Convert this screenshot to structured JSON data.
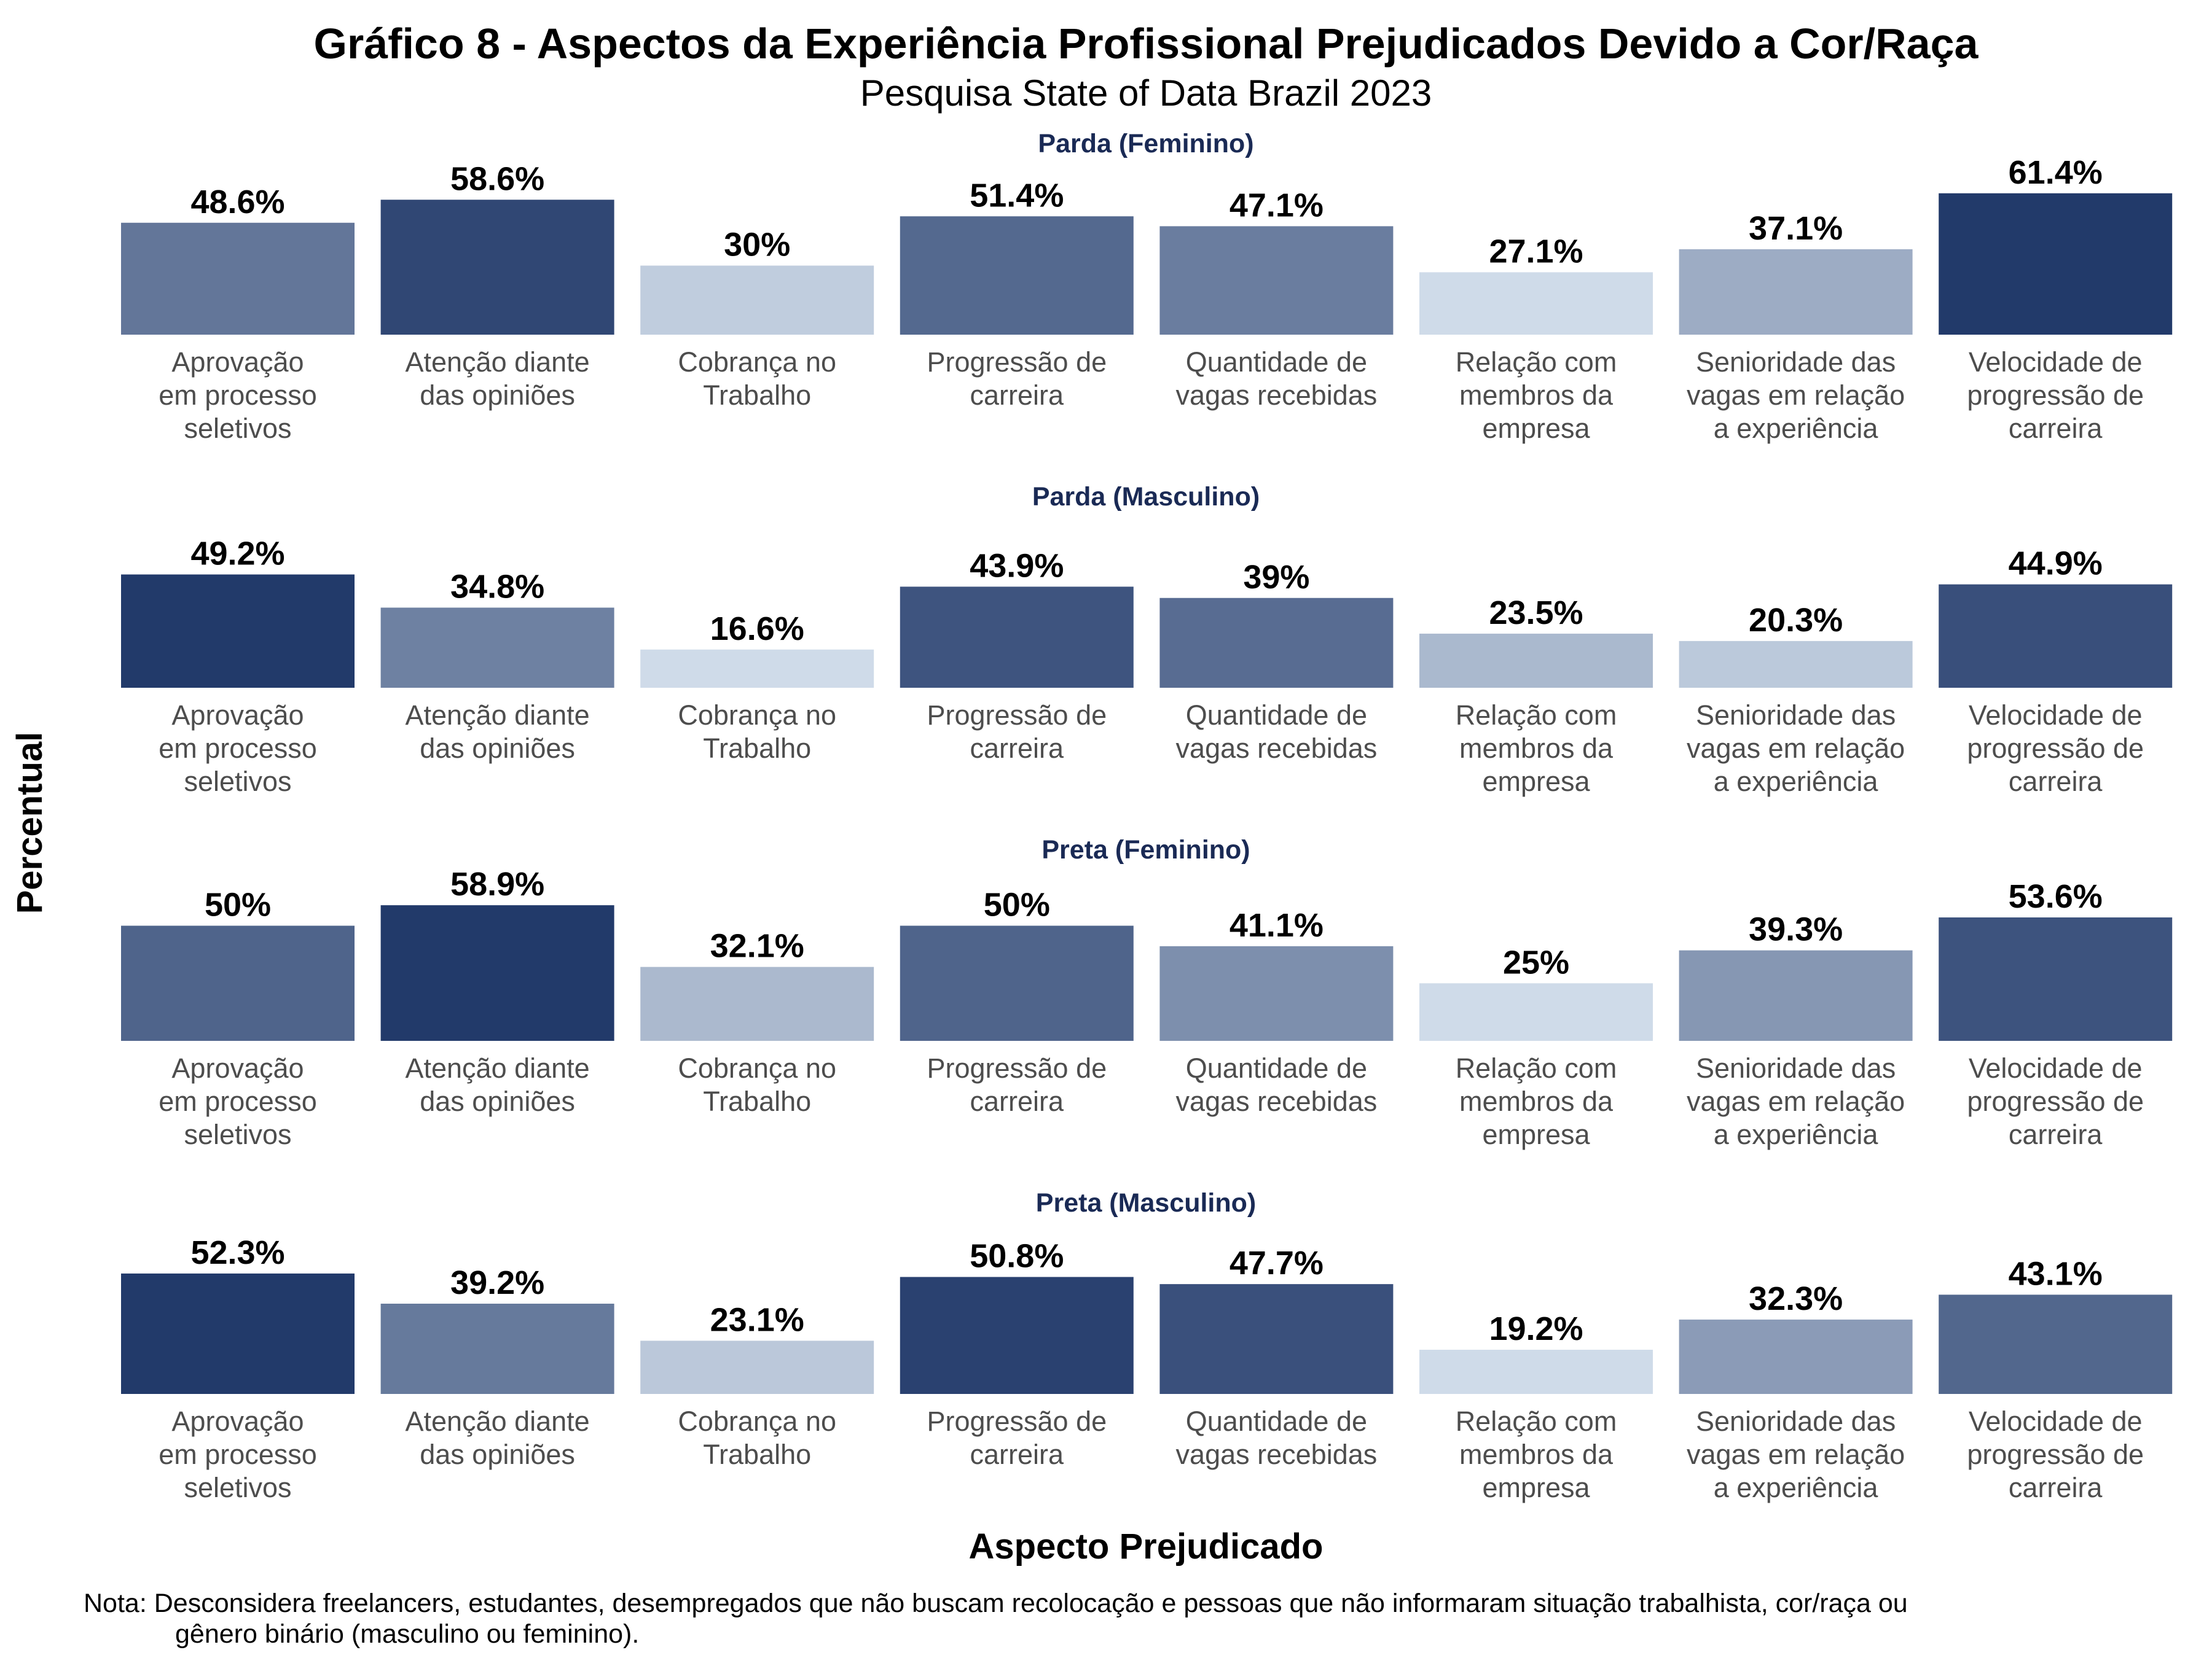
{
  "chart_data": {
    "type": "bar",
    "title": "Gráfico 8 - Aspectos da Experiência Profissional Prejudicados Devido a Cor/Raça",
    "subtitle": "Pesquisa State of Data Brazil 2023",
    "xlabel": "Aspecto Prejudicado",
    "ylabel": "Percentual",
    "ylim": [
      0,
      65
    ],
    "grid": false,
    "legend": "none",
    "categories": [
      "Aprovação\nem processo\nseletivos",
      "Atenção diante\ndas opiniões",
      "Cobrança no\nTrabalho",
      "Progressão de\ncarreira",
      "Quantidade de\nvagas recebidas",
      "Relação com\nmembros da\nempresa",
      "Senioridade das\nvagas em relação\na experiência",
      "Velocidade de\nprogressão de\ncarreira"
    ],
    "facets": [
      {
        "title": "Parda (Feminino)",
        "values": [
          48.6,
          58.6,
          30,
          51.4,
          47.1,
          27.1,
          37.1,
          61.4
        ],
        "labels": [
          "48.6%",
          "58.6%",
          "30%",
          "51.4%",
          "47.1%",
          "27.1%",
          "37.1%",
          "61.4%"
        ]
      },
      {
        "title": "Parda (Masculino)",
        "values": [
          49.2,
          34.8,
          16.6,
          43.9,
          39,
          23.5,
          20.3,
          44.9
        ],
        "labels": [
          "49.2%",
          "34.8%",
          "16.6%",
          "43.9%",
          "39%",
          "23.5%",
          "20.3%",
          "44.9%"
        ]
      },
      {
        "title": "Preta (Feminino)",
        "values": [
          50,
          58.9,
          32.1,
          50,
          41.1,
          25,
          39.3,
          53.6
        ],
        "labels": [
          "50%",
          "58.9%",
          "32.1%",
          "50%",
          "41.1%",
          "25%",
          "39.3%",
          "53.6%"
        ]
      },
      {
        "title": "Preta (Masculino)",
        "values": [
          52.3,
          39.2,
          23.1,
          50.8,
          47.7,
          19.2,
          32.3,
          43.1
        ],
        "labels": [
          "52.3%",
          "39.2%",
          "23.1%",
          "50.8%",
          "47.7%",
          "19.2%",
          "32.3%",
          "43.1%"
        ]
      }
    ],
    "note": [
      "Nota: Desconsidera freelancers, estudantes, desempregados que não buscam recolocação e pessoas que não informaram situação trabalhista, cor/raça ou",
      "gênero binário (masculino ou feminino)."
    ],
    "colors": {
      "low": "#cfdbe9",
      "high": "#223a6a",
      "facet_title": "#1a2a55",
      "tick_label": "#4d4d4d"
    }
  }
}
